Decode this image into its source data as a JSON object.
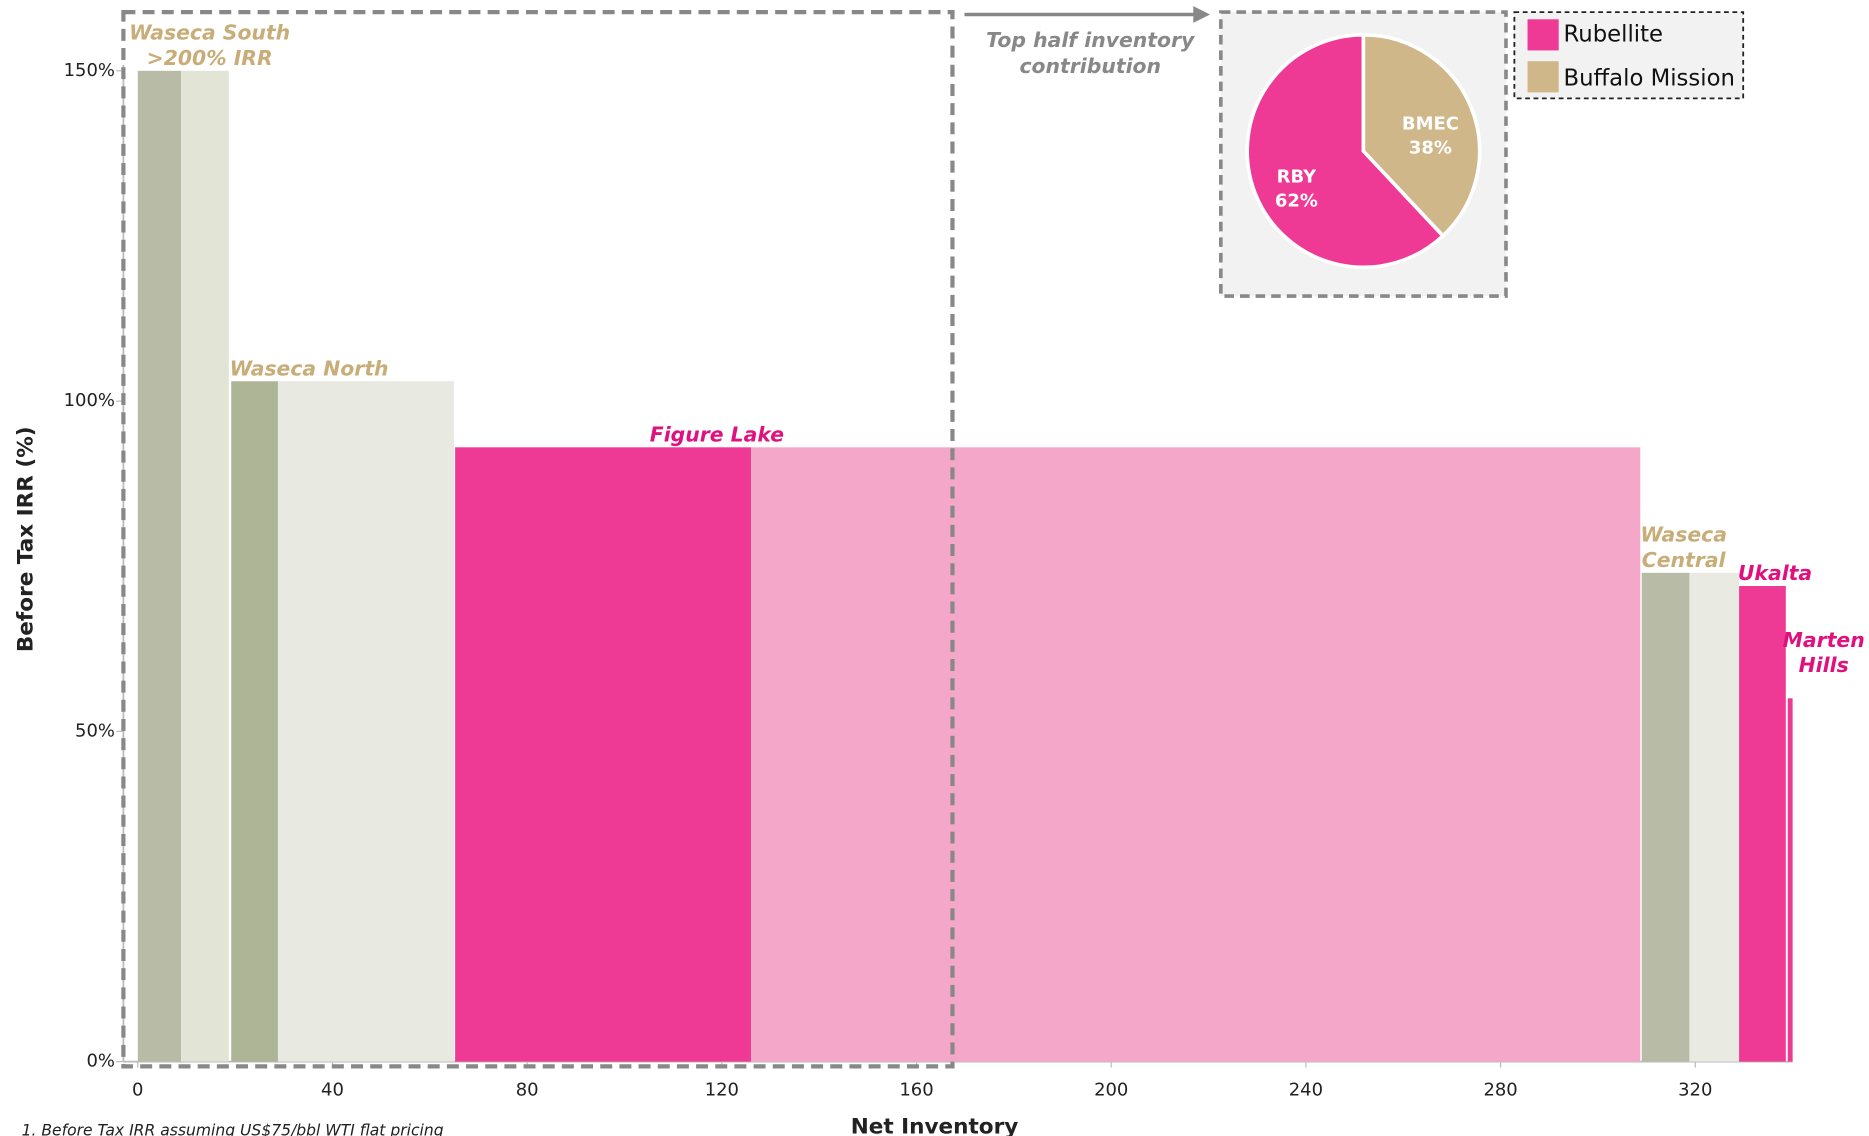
{
  "chart_data": [
    {
      "type": "bar",
      "ylabel": "Before Tax IRR (%)",
      "xlabel": "Net Inventory",
      "xlim": [
        0,
        340
      ],
      "xticks": [
        0,
        40,
        80,
        120,
        160,
        200,
        240,
        280,
        320
      ],
      "ylim": [
        0,
        150
      ],
      "yticks": [
        {
          "value": 0,
          "label": "0%"
        },
        {
          "value": 50,
          "label": "50%"
        },
        {
          "value": 100,
          "label": "100%"
        },
        {
          "value": 150,
          "label": "150%"
        }
      ],
      "bars": [
        {
          "x": [
            0,
            8.9
          ],
          "value": 150,
          "color": "#b8bca6",
          "label": [
            "Waseca South",
            ">200% IRR"
          ],
          "label_color": "#c8ad78"
        },
        {
          "x": [
            8.9,
            18.7
          ],
          "value": 150,
          "color": "#e2e4d6"
        },
        {
          "x": [
            19.2,
            28.8
          ],
          "value": 103,
          "color": "#adb596",
          "label": [
            "Waseca North"
          ],
          "label_color": "#c8ad78"
        },
        {
          "x": [
            28.8,
            65
          ],
          "value": 103,
          "color": "#e8e9e1"
        },
        {
          "x": [
            65.2,
            126
          ],
          "value": 93,
          "color": "#ee3a94",
          "label": [
            "Figure Lake"
          ],
          "label_color": "#e0117f"
        },
        {
          "x": [
            126,
            308.7
          ],
          "value": 93,
          "color": "#f4a7c9"
        },
        {
          "x": [
            309,
            318.8
          ],
          "value": 74,
          "color": "#b8bca6",
          "label": [
            "Waseca",
            "Central"
          ],
          "label_color": "#c8ad78"
        },
        {
          "x": [
            318.8,
            329
          ],
          "value": 74,
          "color": "#e9eae2"
        },
        {
          "x": [
            329,
            338.6
          ],
          "value": 72,
          "color": "#ee3a94",
          "label": [
            "Ukalta"
          ],
          "label_color": "#e0117f"
        },
        {
          "x": [
            339,
            340
          ],
          "value": 55,
          "color": "#ee3a94",
          "label": [
            "Marten",
            "Hills"
          ],
          "label_color": "#e0117f"
        }
      ]
    },
    {
      "type": "pie",
      "title": [
        "Top half inventory",
        "contribution"
      ],
      "categories": [
        "RBY",
        "BMEC"
      ],
      "values": [
        62,
        38
      ],
      "value_labels": [
        "62%",
        "38%"
      ],
      "colors": [
        "#ee3a94",
        "#cfb78a"
      ],
      "legend": [
        "Rubellite",
        "Buffalo Mission"
      ]
    }
  ],
  "footnote": "1.  Before Tax IRR assuming US$75/bbl WTI flat pricing"
}
